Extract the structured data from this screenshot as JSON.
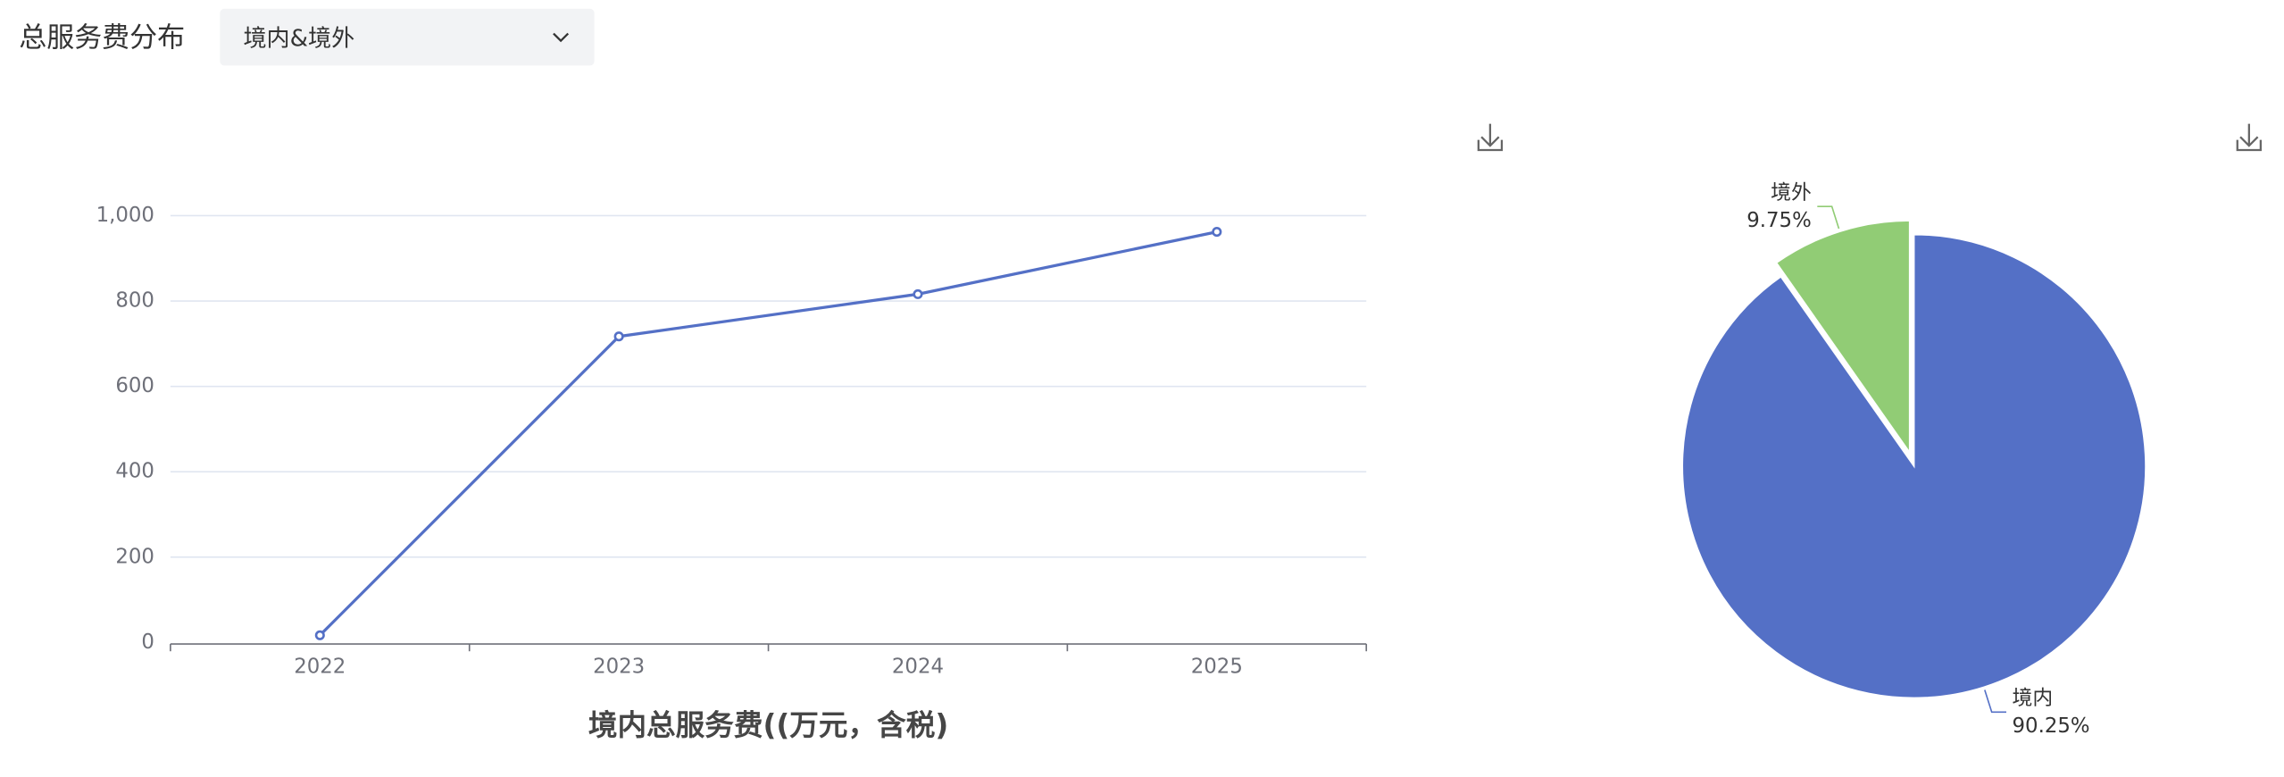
{
  "header": {
    "title": "总服务费分布",
    "dropdown": "境内&境外"
  },
  "chart_data": [
    {
      "type": "line",
      "xlabel": "境内总服务费((万元，含税)",
      "categories": [
        "2022",
        "2023",
        "2024",
        "2025"
      ],
      "values": [
        17,
        717,
        816,
        962
      ],
      "color": "#5470c6",
      "ylim": [
        0,
        1000
      ],
      "yticks": [
        0,
        200,
        400,
        600,
        800,
        {
          "value": 1000,
          "label": "1,000"
        }
      ],
      "grid": true
    },
    {
      "type": "pie",
      "categories": [
        "境外",
        "境内"
      ],
      "values": [
        9.75,
        90.25
      ],
      "value_labels": [
        "9.75%",
        "90.25%"
      ],
      "colors": [
        "#91cc75",
        "#5470c6"
      ]
    }
  ]
}
